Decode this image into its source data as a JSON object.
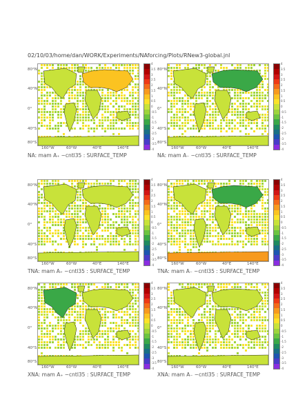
{
  "header": "02/10/03/home/dan/WORK/Experiments/NAforcing/Plots/RNew3-global.jnl",
  "axes": {
    "lat_ticks": [
      "80°N",
      "40°N",
      "0°",
      "40°S",
      "80°S"
    ],
    "lon_ticks": [
      "160°W",
      "60°W",
      "40°E",
      "140°E"
    ]
  },
  "colorbar": {
    "labels": [
      "4",
      "3.5",
      "3",
      "2.5",
      "2",
      "1.5",
      "1",
      "0.5",
      "0",
      "-0.5",
      "-1",
      "-1.5",
      "-2",
      "-2.5",
      "-3",
      "-3.5",
      "-4"
    ],
    "colors": [
      "#8b0000",
      "#b10000",
      "#d11515",
      "#ee3a16",
      "#f36a1a",
      "#f79a1e",
      "#fbc321",
      "#fbe22a",
      "#c8e23a",
      "#9ed43c",
      "#6cc440",
      "#3aa847",
      "#1f8a5f",
      "#196f86",
      "#1d55b0",
      "#4a3cc8",
      "#8a2ee0"
    ]
  },
  "chart_data": [
    {
      "type": "heatmap",
      "caption": "NA: mam A₊ −cntl35 : SURFACE_TEMP",
      "field": "SURFACE_TEMP",
      "xlabel": "",
      "ylabel": "",
      "vmin": -4,
      "vmax": 4
    },
    {
      "type": "heatmap",
      "caption": "NA: mam A₋ −cntl35 : SURFACE_TEMP",
      "field": "SURFACE_TEMP",
      "xlabel": "",
      "ylabel": "",
      "vmin": -4,
      "vmax": 4
    },
    {
      "type": "heatmap",
      "caption": "TNA: mam A₊ −cntl35 : SURFACE_TEMP",
      "field": "SURFACE_TEMP",
      "xlabel": "",
      "ylabel": "",
      "vmin": -4,
      "vmax": 4
    },
    {
      "type": "heatmap",
      "caption": "TNA: mam A₋ −cntl35 : SURFACE_TEMP",
      "field": "SURFACE_TEMP",
      "xlabel": "",
      "ylabel": "",
      "vmin": -4,
      "vmax": 4
    },
    {
      "type": "heatmap",
      "caption": "XNA: mam A₊ −cntl35 : SURFACE_TEMP",
      "field": "SURFACE_TEMP",
      "xlabel": "",
      "ylabel": "",
      "vmin": -4,
      "vmax": 4
    },
    {
      "type": "heatmap",
      "caption": "XNA: mam A₋ −cntl35 : SURFACE_TEMP",
      "field": "SURFACE_TEMP",
      "xlabel": "",
      "ylabel": "",
      "vmin": -4,
      "vmax": 4
    }
  ]
}
